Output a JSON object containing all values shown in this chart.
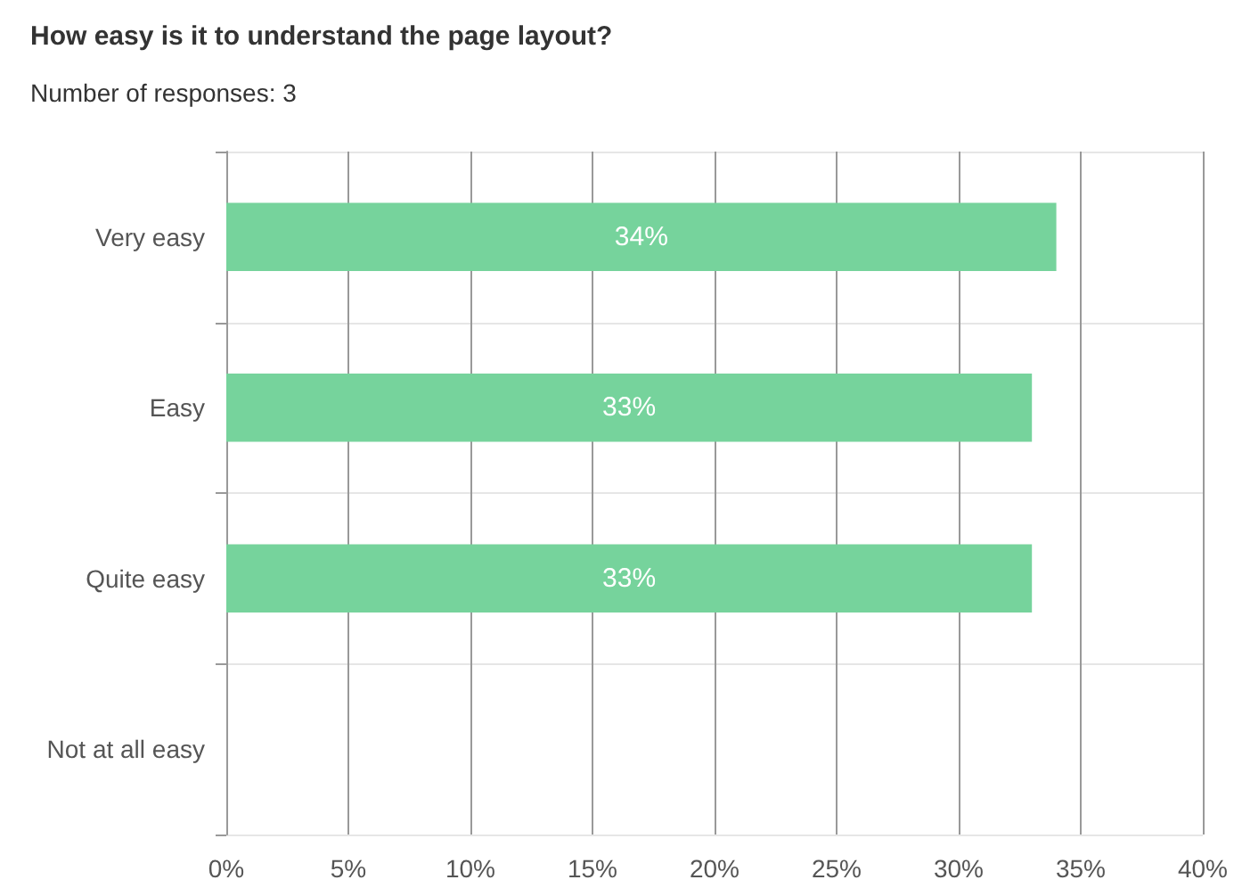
{
  "chart_data": {
    "type": "bar",
    "orientation": "horizontal",
    "title": "How easy is it to understand the page layout?",
    "subtitle": "Number of responses: 3",
    "categories": [
      "Very easy",
      "Easy",
      "Quite easy",
      "Not at all easy"
    ],
    "values": [
      34,
      33,
      33,
      0
    ],
    "value_labels": [
      "34%",
      "33%",
      "33%",
      null
    ],
    "color": "#76d39c",
    "xlim": [
      0,
      40
    ],
    "xticks": [
      {
        "value": 0,
        "label": "0%"
      },
      {
        "value": 5,
        "label": "5%"
      },
      {
        "value": 10,
        "label": "10%"
      },
      {
        "value": 15,
        "label": "15%"
      },
      {
        "value": 20,
        "label": "20%"
      },
      {
        "value": 25,
        "label": "25%"
      },
      {
        "value": 30,
        "label": "30%"
      },
      {
        "value": 35,
        "label": "35%"
      },
      {
        "value": 40,
        "label": "40%"
      }
    ],
    "grid": true
  }
}
